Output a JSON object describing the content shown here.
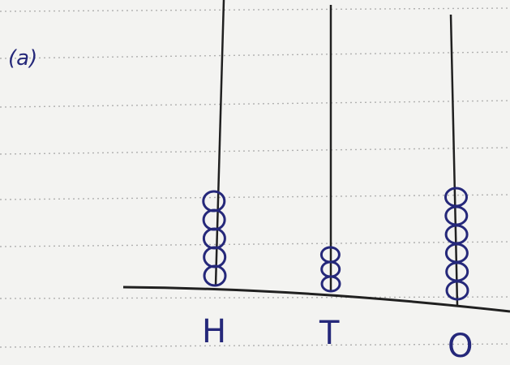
{
  "question_label": "(a)",
  "abacus": {
    "rods": [
      {
        "label": "H",
        "beads": 5
      },
      {
        "label": "T",
        "beads": 3
      },
      {
        "label": "O",
        "beads": 6
      }
    ]
  },
  "colors": {
    "paper": "#f3f3f1",
    "ruled_line": "#9a9a9a",
    "pencil": "#202020",
    "ink": "#25287a"
  }
}
